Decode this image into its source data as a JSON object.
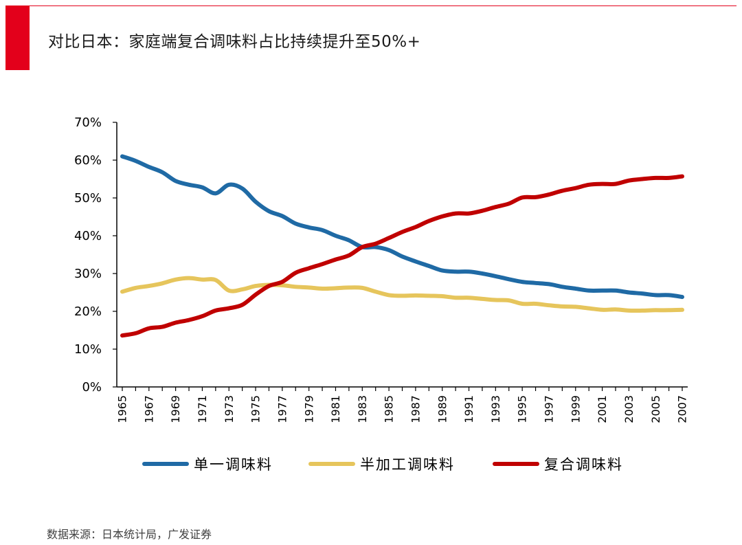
{
  "header": {
    "title": "对比日本：家庭端复合调味料占比持续提升至50%+",
    "accent_color": "#e3001b"
  },
  "source": "数据来源：日本统计局，广发证券",
  "chart_data": {
    "type": "line",
    "title": "",
    "xlabel": "",
    "ylabel": "",
    "ylim": [
      0,
      70
    ],
    "yticks": [
      "0%",
      "10%",
      "20%",
      "30%",
      "40%",
      "50%",
      "60%",
      "70%"
    ],
    "x": [
      1965,
      1966,
      1967,
      1968,
      1969,
      1970,
      1971,
      1972,
      1973,
      1974,
      1975,
      1976,
      1977,
      1978,
      1979,
      1980,
      1981,
      1982,
      1983,
      1984,
      1985,
      1986,
      1987,
      1988,
      1989,
      1990,
      1991,
      1992,
      1993,
      1994,
      1995,
      1996,
      1997,
      1998,
      1999,
      2000,
      2001,
      2002,
      2003,
      2004,
      2005,
      2006,
      2007
    ],
    "xticks": [
      "1965",
      "1967",
      "1969",
      "1971",
      "1973",
      "1975",
      "1977",
      "1979",
      "1981",
      "1983",
      "1985",
      "1987",
      "1989",
      "1991",
      "1993",
      "1995",
      "1997",
      "1999",
      "2001",
      "2003",
      "2005",
      "2007"
    ],
    "legend_position": "bottom",
    "grid": false,
    "series": [
      {
        "name": "单一调味料",
        "color": "#1f6aa5",
        "values": [
          61.0,
          59.8,
          58.2,
          56.8,
          54.5,
          53.5,
          52.8,
          51.2,
          53.5,
          52.5,
          49.0,
          46.5,
          45.2,
          43.2,
          42.2,
          41.5,
          40.0,
          38.8,
          37.0,
          37.0,
          36.2,
          34.5,
          33.2,
          32.0,
          30.8,
          30.5,
          30.5,
          30.0,
          29.3,
          28.5,
          27.8,
          27.5,
          27.2,
          26.5,
          26.0,
          25.5,
          25.5,
          25.5,
          25.0,
          24.7,
          24.3,
          24.3,
          23.8
        ]
      },
      {
        "name": "半加工调味料",
        "color": "#e6c55c",
        "values": [
          25.2,
          26.2,
          26.7,
          27.4,
          28.4,
          28.8,
          28.4,
          28.3,
          25.5,
          25.8,
          26.7,
          27.0,
          26.9,
          26.5,
          26.3,
          26.0,
          26.1,
          26.3,
          26.2,
          25.2,
          24.3,
          24.1,
          24.2,
          24.1,
          24.0,
          23.6,
          23.6,
          23.3,
          23.0,
          22.9,
          22.0,
          22.0,
          21.6,
          21.3,
          21.2,
          20.8,
          20.4,
          20.5,
          20.2,
          20.2,
          20.3,
          20.3,
          20.4
        ]
      },
      {
        "name": "复合调味料",
        "color": "#c00000",
        "values": [
          13.6,
          14.2,
          15.5,
          15.9,
          17.0,
          17.7,
          18.7,
          20.2,
          20.8,
          21.7,
          24.4,
          26.7,
          27.8,
          30.2,
          31.4,
          32.5,
          33.7,
          34.8,
          37.0,
          37.9,
          39.4,
          41.0,
          42.3,
          43.9,
          45.1,
          45.9,
          45.9,
          46.6,
          47.6,
          48.5,
          50.1,
          50.2,
          50.9,
          51.9,
          52.6,
          53.5,
          53.7,
          53.7,
          54.6,
          55.0,
          55.3,
          55.3,
          55.7
        ]
      }
    ]
  }
}
